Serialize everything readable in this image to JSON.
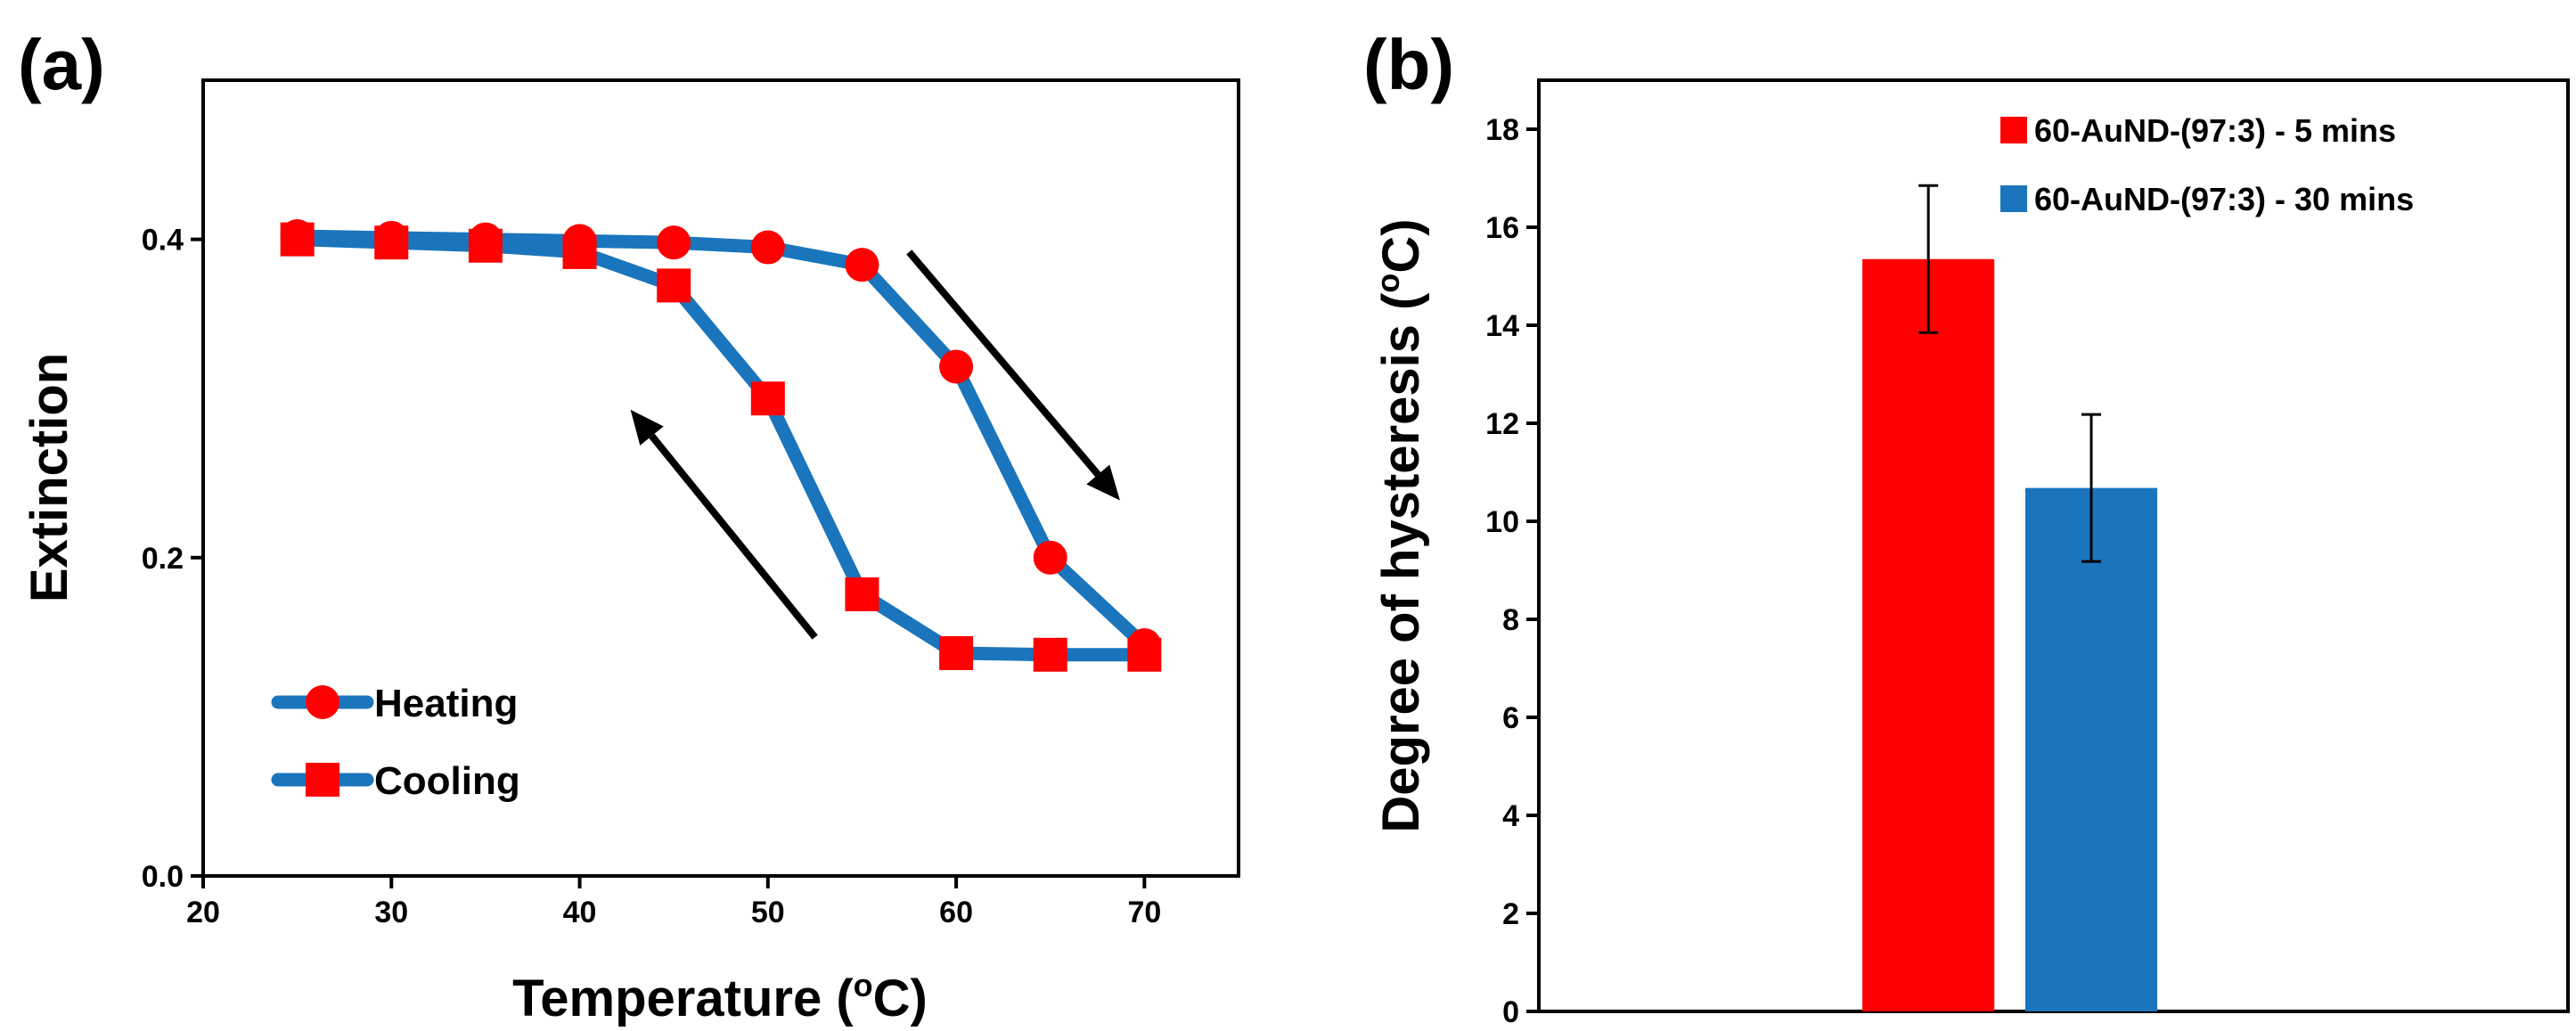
{
  "panel_a_label": "(a)",
  "panel_b_label": "(b)",
  "colors": {
    "line": "#1a75bc",
    "marker": "#ff0000",
    "bar_5min": "#ff0000",
    "bar_30min": "#1a75bc",
    "arrow": "#000000"
  },
  "chart_data": [
    {
      "type": "line",
      "panel": "(a)",
      "title": "",
      "xlabel_text": "Temperature (",
      "xlabel_sup": "o",
      "xlabel_end": "C)",
      "ylabel": "Extinction",
      "xlim": [
        20,
        75
      ],
      "ylim": [
        0.0,
        0.5
      ],
      "xticks": [
        20,
        30,
        40,
        50,
        60,
        70
      ],
      "yticks": [
        0.0,
        0.2,
        0.4
      ],
      "ytick_labels": [
        "0.0",
        "0.2",
        "0.4"
      ],
      "grid": false,
      "legend_position": "bottom-left",
      "series": [
        {
          "name": "Heating",
          "marker": "circle",
          "x": [
            25,
            30,
            35,
            40,
            45,
            50,
            55,
            60,
            65,
            70
          ],
          "y": [
            0.402,
            0.401,
            0.4,
            0.399,
            0.398,
            0.395,
            0.384,
            0.32,
            0.2,
            0.145
          ]
        },
        {
          "name": "Cooling",
          "marker": "square",
          "x": [
            25,
            30,
            35,
            40,
            45,
            50,
            55,
            60,
            65,
            70
          ],
          "y": [
            0.4,
            0.398,
            0.396,
            0.392,
            0.371,
            0.3,
            0.177,
            0.14,
            0.139,
            0.139
          ]
        }
      ],
      "annotations": [
        {
          "type": "arrow",
          "from": [
            57.5,
            0.392
          ],
          "to": [
            68.7,
            0.236
          ],
          "meaning": "heating direction"
        },
        {
          "type": "arrow",
          "from": [
            52.5,
            0.15
          ],
          "to": [
            42.7,
            0.293
          ],
          "meaning": "cooling direction"
        }
      ]
    },
    {
      "type": "bar",
      "panel": "(b)",
      "title": "",
      "xlabel": "",
      "ylabel_text": "Degree of hysteresis (",
      "ylabel_sup": "o",
      "ylabel_end": "C)",
      "ylim": [
        0,
        19
      ],
      "yticks": [
        0,
        2,
        4,
        6,
        8,
        10,
        12,
        14,
        16,
        18
      ],
      "grid": false,
      "legend_position": "top-right",
      "series": [
        {
          "name": "60-AuND-(97:3) - 5 mins",
          "value": 15.35,
          "error": 1.5
        },
        {
          "name": "60-AuND-(97:3) - 30 mins",
          "value": 10.68,
          "error": 1.5
        }
      ]
    }
  ]
}
